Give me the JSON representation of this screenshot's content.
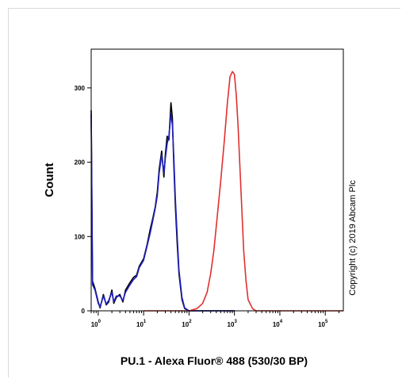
{
  "chart_data": {
    "type": "line",
    "title": "",
    "xlabel": "PU.1 - Alexa Fluor® 488 (530/30 BP)",
    "ylabel": "Count",
    "x_scale": "log",
    "xlim": [
      0.7,
      250000
    ],
    "ylim": [
      0,
      350
    ],
    "y_ticks": [
      0,
      100,
      200,
      300
    ],
    "y_tick_labels": [
      "0",
      "100",
      "200",
      "300"
    ],
    "x_ticks": [
      1,
      10,
      100,
      1000,
      10000,
      100000
    ],
    "x_tick_labels": [
      {
        "base": "10",
        "exp": "0"
      },
      {
        "base": "10",
        "exp": "1"
      },
      {
        "base": "10",
        "exp": "2"
      },
      {
        "base": "10",
        "exp": "3"
      },
      {
        "base": "10",
        "exp": "4"
      },
      {
        "base": "10",
        "exp": "5"
      }
    ],
    "series": [
      {
        "color": "#000000",
        "x": [
          0.7,
          0.75,
          0.85,
          1.0,
          1.1,
          1.3,
          1.5,
          1.7,
          2.0,
          2.2,
          2.5,
          3.0,
          3.5,
          4.0,
          5.0,
          6.0,
          7.0,
          8.0,
          10,
          12,
          14,
          16,
          18,
          20,
          22,
          25,
          28,
          30,
          33,
          36,
          40,
          43,
          46,
          50,
          55,
          60,
          70,
          80,
          100,
          150,
          1000
        ],
        "y": [
          270,
          40,
          30,
          12,
          4,
          22,
          8,
          12,
          28,
          10,
          18,
          22,
          12,
          28,
          38,
          45,
          48,
          60,
          70,
          90,
          110,
          125,
          140,
          160,
          190,
          215,
          180,
          210,
          235,
          230,
          280,
          260,
          200,
          140,
          90,
          50,
          15,
          3,
          0,
          0,
          0
        ]
      },
      {
        "color": "#1f1fbf",
        "x": [
          0.7,
          0.75,
          0.85,
          1.0,
          1.1,
          1.3,
          1.5,
          1.7,
          2.0,
          2.2,
          2.5,
          3.0,
          3.5,
          4.0,
          5.0,
          6.0,
          7.0,
          8.0,
          10,
          12,
          14,
          16,
          18,
          20,
          22,
          25,
          28,
          30,
          33,
          36,
          40,
          43,
          46,
          50,
          55,
          60,
          70,
          80,
          100,
          150,
          1000
        ],
        "y": [
          265,
          35,
          28,
          10,
          5,
          20,
          9,
          14,
          25,
          12,
          20,
          20,
          14,
          25,
          35,
          42,
          46,
          58,
          68,
          88,
          105,
          122,
          138,
          155,
          185,
          210,
          185,
          205,
          225,
          235,
          265,
          250,
          210,
          150,
          100,
          55,
          18,
          4,
          0,
          0,
          0
        ]
      },
      {
        "color": "#e03030",
        "x": [
          10,
          100,
          150,
          200,
          250,
          300,
          350,
          400,
          500,
          600,
          700,
          800,
          900,
          1000,
          1100,
          1200,
          1400,
          1600,
          1800,
          2000,
          2500,
          3000,
          4000,
          10000,
          100000,
          250000
        ],
        "y": [
          0,
          0,
          3,
          10,
          25,
          50,
          80,
          115,
          175,
          230,
          280,
          315,
          322,
          318,
          290,
          250,
          160,
          80,
          40,
          15,
          3,
          0,
          0,
          0,
          0,
          0
        ]
      }
    ],
    "grid": false,
    "legend": "none"
  },
  "annotations": {
    "copyright": "Copyright (c) 2019 Abcam Plc"
  }
}
